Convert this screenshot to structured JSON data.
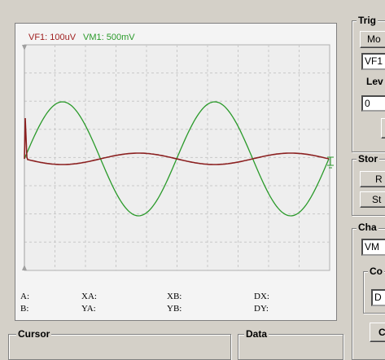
{
  "scope": {
    "channel_labels": [
      "VF1: 100uV",
      "VM1: 500mV"
    ],
    "cursor_labels": {
      "a": "A:",
      "xa": "XA:",
      "xb": "XB:",
      "dx": "DX:",
      "b": "B:",
      "ya": "YA:",
      "yb": "YB:",
      "dy": "DY:"
    }
  },
  "trigger": {
    "title": "Trig",
    "mode_button": "Mo",
    "source": "VF1",
    "level_label": "Lev",
    "level_value": "0"
  },
  "storage": {
    "title": "Stor",
    "buttons": [
      "R",
      "St"
    ]
  },
  "channel": {
    "title": "Cha",
    "select": "VM",
    "coupling_title": "Co",
    "coupling_select": "D",
    "button": "C"
  },
  "cursor_group": {
    "title": "Cursor"
  },
  "data_group": {
    "title": "Data"
  }
}
